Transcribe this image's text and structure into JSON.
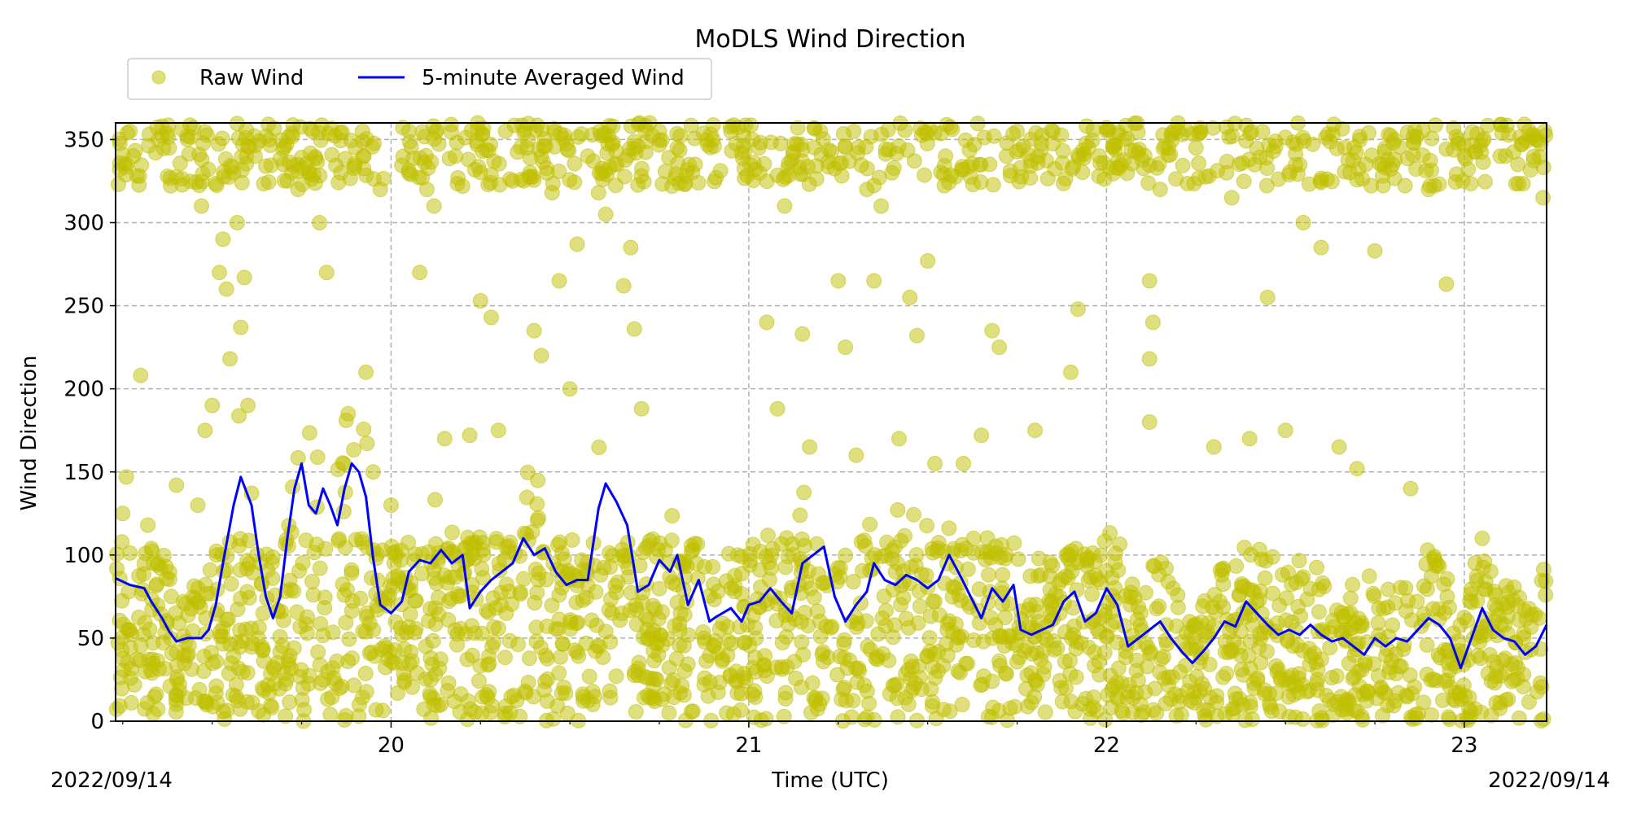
{
  "chart_data": {
    "type": "scatter",
    "title": "MoDLS Wind Direction",
    "xlabel": "Time (UTC)",
    "ylabel": "Wind Direction",
    "x_corner_labels": {
      "left": "2022/09/14",
      "right": "2022/09/14"
    },
    "xlim": [
      19.23,
      23.23
    ],
    "ylim": [
      0,
      360
    ],
    "x_ticks": [
      {
        "value": 20,
        "label": "20"
      },
      {
        "value": 21,
        "label": "21"
      },
      {
        "value": 22,
        "label": "22"
      },
      {
        "value": 23,
        "label": "23"
      }
    ],
    "y_ticks": [
      {
        "value": 0,
        "label": "0"
      },
      {
        "value": 50,
        "label": "50"
      },
      {
        "value": 100,
        "label": "100"
      },
      {
        "value": 150,
        "label": "150"
      },
      {
        "value": 200,
        "label": "200"
      },
      {
        "value": 250,
        "label": "250"
      },
      {
        "value": 300,
        "label": "300"
      },
      {
        "value": 350,
        "label": "350"
      }
    ],
    "grid": true,
    "legend": {
      "placement": "top-left, above axes",
      "entries": [
        {
          "label": "Raw Wind",
          "marker": "circle",
          "color": "#bfbf00"
        },
        {
          "label": "5-minute Averaged Wind",
          "marker": "line",
          "color": "#0000ff"
        }
      ]
    },
    "series": [
      {
        "name": "5-minute Averaged Wind",
        "type": "line",
        "color": "#0000ff",
        "points": [
          [
            19.23,
            86
          ],
          [
            19.27,
            82
          ],
          [
            19.31,
            80
          ],
          [
            19.33,
            72
          ],
          [
            19.36,
            62
          ],
          [
            19.38,
            54
          ],
          [
            19.4,
            48
          ],
          [
            19.43,
            50
          ],
          [
            19.47,
            50
          ],
          [
            19.49,
            55
          ],
          [
            19.51,
            70
          ],
          [
            19.53,
            95
          ],
          [
            19.56,
            130
          ],
          [
            19.58,
            147
          ],
          [
            19.61,
            130
          ],
          [
            19.63,
            100
          ],
          [
            19.65,
            75
          ],
          [
            19.67,
            62
          ],
          [
            19.69,
            75
          ],
          [
            19.71,
            110
          ],
          [
            19.73,
            140
          ],
          [
            19.75,
            155
          ],
          [
            19.77,
            130
          ],
          [
            19.79,
            125
          ],
          [
            19.81,
            140
          ],
          [
            19.83,
            130
          ],
          [
            19.85,
            118
          ],
          [
            19.87,
            140
          ],
          [
            19.89,
            155
          ],
          [
            19.91,
            150
          ],
          [
            19.93,
            135
          ],
          [
            19.95,
            98
          ],
          [
            19.97,
            70
          ],
          [
            20.0,
            65
          ],
          [
            20.03,
            72
          ],
          [
            20.05,
            90
          ],
          [
            20.08,
            97
          ],
          [
            20.11,
            95
          ],
          [
            20.14,
            103
          ],
          [
            20.17,
            95
          ],
          [
            20.2,
            100
          ],
          [
            20.22,
            68
          ],
          [
            20.25,
            78
          ],
          [
            20.28,
            85
          ],
          [
            20.31,
            90
          ],
          [
            20.34,
            95
          ],
          [
            20.37,
            110
          ],
          [
            20.4,
            100
          ],
          [
            20.43,
            104
          ],
          [
            20.46,
            90
          ],
          [
            20.49,
            82
          ],
          [
            20.52,
            85
          ],
          [
            20.55,
            85
          ],
          [
            20.58,
            128
          ],
          [
            20.6,
            143
          ],
          [
            20.63,
            132
          ],
          [
            20.66,
            118
          ],
          [
            20.69,
            78
          ],
          [
            20.72,
            82
          ],
          [
            20.75,
            97
          ],
          [
            20.78,
            90
          ],
          [
            20.8,
            100
          ],
          [
            20.83,
            70
          ],
          [
            20.86,
            85
          ],
          [
            20.89,
            60
          ],
          [
            20.91,
            63
          ],
          [
            20.95,
            68
          ],
          [
            20.98,
            60
          ],
          [
            21.0,
            70
          ],
          [
            21.03,
            72
          ],
          [
            21.06,
            80
          ],
          [
            21.09,
            72
          ],
          [
            21.12,
            65
          ],
          [
            21.15,
            95
          ],
          [
            21.18,
            100
          ],
          [
            21.21,
            105
          ],
          [
            21.24,
            75
          ],
          [
            21.27,
            60
          ],
          [
            21.3,
            70
          ],
          [
            21.33,
            78
          ],
          [
            21.35,
            95
          ],
          [
            21.38,
            85
          ],
          [
            21.41,
            82
          ],
          [
            21.44,
            88
          ],
          [
            21.47,
            85
          ],
          [
            21.5,
            80
          ],
          [
            21.53,
            85
          ],
          [
            21.56,
            100
          ],
          [
            21.59,
            88
          ],
          [
            21.62,
            75
          ],
          [
            21.65,
            62
          ],
          [
            21.68,
            80
          ],
          [
            21.71,
            72
          ],
          [
            21.74,
            82
          ],
          [
            21.76,
            55
          ],
          [
            21.79,
            52
          ],
          [
            21.82,
            55
          ],
          [
            21.85,
            58
          ],
          [
            21.88,
            72
          ],
          [
            21.91,
            78
          ],
          [
            21.94,
            60
          ],
          [
            21.97,
            65
          ],
          [
            22.0,
            80
          ],
          [
            22.03,
            70
          ],
          [
            22.06,
            45
          ],
          [
            22.09,
            50
          ],
          [
            22.12,
            55
          ],
          [
            22.15,
            60
          ],
          [
            22.18,
            50
          ],
          [
            22.21,
            42
          ],
          [
            22.24,
            35
          ],
          [
            22.27,
            42
          ],
          [
            22.3,
            50
          ],
          [
            22.33,
            60
          ],
          [
            22.36,
            57
          ],
          [
            22.39,
            72
          ],
          [
            22.42,
            65
          ],
          [
            22.45,
            58
          ],
          [
            22.48,
            52
          ],
          [
            22.51,
            55
          ],
          [
            22.54,
            52
          ],
          [
            22.57,
            58
          ],
          [
            22.6,
            52
          ],
          [
            22.63,
            48
          ],
          [
            22.66,
            50
          ],
          [
            22.69,
            45
          ],
          [
            22.72,
            40
          ],
          [
            22.75,
            50
          ],
          [
            22.78,
            45
          ],
          [
            22.81,
            50
          ],
          [
            22.84,
            48
          ],
          [
            22.87,
            55
          ],
          [
            22.9,
            62
          ],
          [
            22.93,
            58
          ],
          [
            22.96,
            50
          ],
          [
            22.99,
            32
          ],
          [
            23.02,
            50
          ],
          [
            23.05,
            68
          ],
          [
            23.08,
            55
          ],
          [
            23.11,
            50
          ],
          [
            23.14,
            48
          ],
          [
            23.17,
            40
          ],
          [
            23.2,
            45
          ],
          [
            23.23,
            58
          ]
        ]
      },
      {
        "name": "Raw Wind",
        "type": "scatter",
        "color": "#bfbf00",
        "alpha": 0.5,
        "description_of_density": "thousands of scattered samples densely filling 0–110 and 320–360, sparse between",
        "points": [
          [
            19.25,
            125
          ],
          [
            19.26,
            147
          ],
          [
            19.27,
            355
          ],
          [
            19.28,
            340
          ],
          [
            19.29,
            328
          ],
          [
            19.3,
            208
          ],
          [
            19.32,
            118
          ],
          [
            19.35,
            350
          ],
          [
            19.38,
            345
          ],
          [
            19.4,
            142
          ],
          [
            19.43,
            352
          ],
          [
            19.46,
            130
          ],
          [
            19.47,
            310
          ],
          [
            19.48,
            175
          ],
          [
            19.5,
            190
          ],
          [
            19.52,
            270
          ],
          [
            19.53,
            290
          ],
          [
            19.54,
            260
          ],
          [
            19.55,
            218
          ],
          [
            19.56,
            330
          ],
          [
            19.57,
            300
          ],
          [
            19.58,
            237
          ],
          [
            19.59,
            267
          ],
          [
            19.6,
            190
          ],
          [
            19.62,
            340
          ],
          [
            19.66,
            350
          ],
          [
            19.7,
            335
          ],
          [
            19.74,
            320
          ],
          [
            19.78,
            355
          ],
          [
            19.8,
            300
          ],
          [
            19.82,
            270
          ],
          [
            19.86,
            330
          ],
          [
            19.88,
            185
          ],
          [
            19.9,
            345
          ],
          [
            19.92,
            355
          ],
          [
            19.93,
            210
          ],
          [
            19.95,
            150
          ],
          [
            19.97,
            320
          ],
          [
            20.0,
            130
          ],
          [
            20.05,
            355
          ],
          [
            20.08,
            270
          ],
          [
            20.1,
            320
          ],
          [
            20.12,
            310
          ],
          [
            20.15,
            170
          ],
          [
            20.18,
            340
          ],
          [
            20.2,
            322
          ],
          [
            20.22,
            172
          ],
          [
            20.25,
            253
          ],
          [
            20.28,
            243
          ],
          [
            20.3,
            175
          ],
          [
            20.32,
            355
          ],
          [
            20.38,
            345
          ],
          [
            20.4,
            235
          ],
          [
            20.42,
            220
          ],
          [
            20.45,
            318
          ],
          [
            20.47,
            265
          ],
          [
            20.5,
            200
          ],
          [
            20.52,
            287
          ],
          [
            20.55,
            340
          ],
          [
            20.58,
            318
          ],
          [
            20.6,
            305
          ],
          [
            20.62,
            358
          ],
          [
            20.65,
            262
          ],
          [
            20.67,
            285
          ],
          [
            20.68,
            236
          ],
          [
            20.7,
            188
          ],
          [
            20.75,
            355
          ],
          [
            20.8,
            345
          ],
          [
            20.85,
            335
          ],
          [
            20.9,
            350
          ],
          [
            20.95,
            355
          ],
          [
            20.98,
            342
          ],
          [
            21.01,
            350
          ],
          [
            21.03,
            330
          ],
          [
            21.05,
            240
          ],
          [
            21.08,
            188
          ],
          [
            21.1,
            310
          ],
          [
            21.15,
            233
          ],
          [
            21.17,
            165
          ],
          [
            21.2,
            355
          ],
          [
            21.25,
            265
          ],
          [
            21.27,
            225
          ],
          [
            21.3,
            160
          ],
          [
            21.33,
            320
          ],
          [
            21.35,
            265
          ],
          [
            21.37,
            310
          ],
          [
            21.4,
            330
          ],
          [
            21.42,
            170
          ],
          [
            21.45,
            255
          ],
          [
            21.47,
            232
          ],
          [
            21.5,
            277
          ],
          [
            21.52,
            155
          ],
          [
            21.55,
            340
          ],
          [
            21.6,
            155
          ],
          [
            21.65,
            172
          ],
          [
            21.68,
            235
          ],
          [
            21.7,
            225
          ],
          [
            21.72,
            340
          ],
          [
            21.75,
            355
          ],
          [
            21.8,
            175
          ],
          [
            21.85,
            355
          ],
          [
            21.9,
            210
          ],
          [
            21.92,
            248
          ],
          [
            21.95,
            345
          ],
          [
            21.98,
            340
          ],
          [
            22.0,
            355
          ],
          [
            22.05,
            350
          ],
          [
            22.12,
            265
          ],
          [
            22.13,
            240
          ],
          [
            22.12,
            218
          ],
          [
            22.12,
            180
          ],
          [
            22.15,
            320
          ],
          [
            22.2,
            355
          ],
          [
            22.25,
            345
          ],
          [
            22.3,
            165
          ],
          [
            22.35,
            315
          ],
          [
            22.4,
            170
          ],
          [
            22.45,
            255
          ],
          [
            22.5,
            175
          ],
          [
            22.55,
            300
          ],
          [
            22.6,
            285
          ],
          [
            22.65,
            165
          ],
          [
            22.7,
            152
          ],
          [
            22.75,
            283
          ],
          [
            22.8,
            335
          ],
          [
            22.85,
            140
          ],
          [
            22.9,
            320
          ],
          [
            22.95,
            263
          ],
          [
            23.0,
            340
          ],
          [
            23.05,
            110
          ],
          [
            23.1,
            340
          ],
          [
            23.15,
            335
          ],
          [
            23.2,
            350
          ],
          [
            23.22,
            315
          ]
        ]
      }
    ]
  }
}
